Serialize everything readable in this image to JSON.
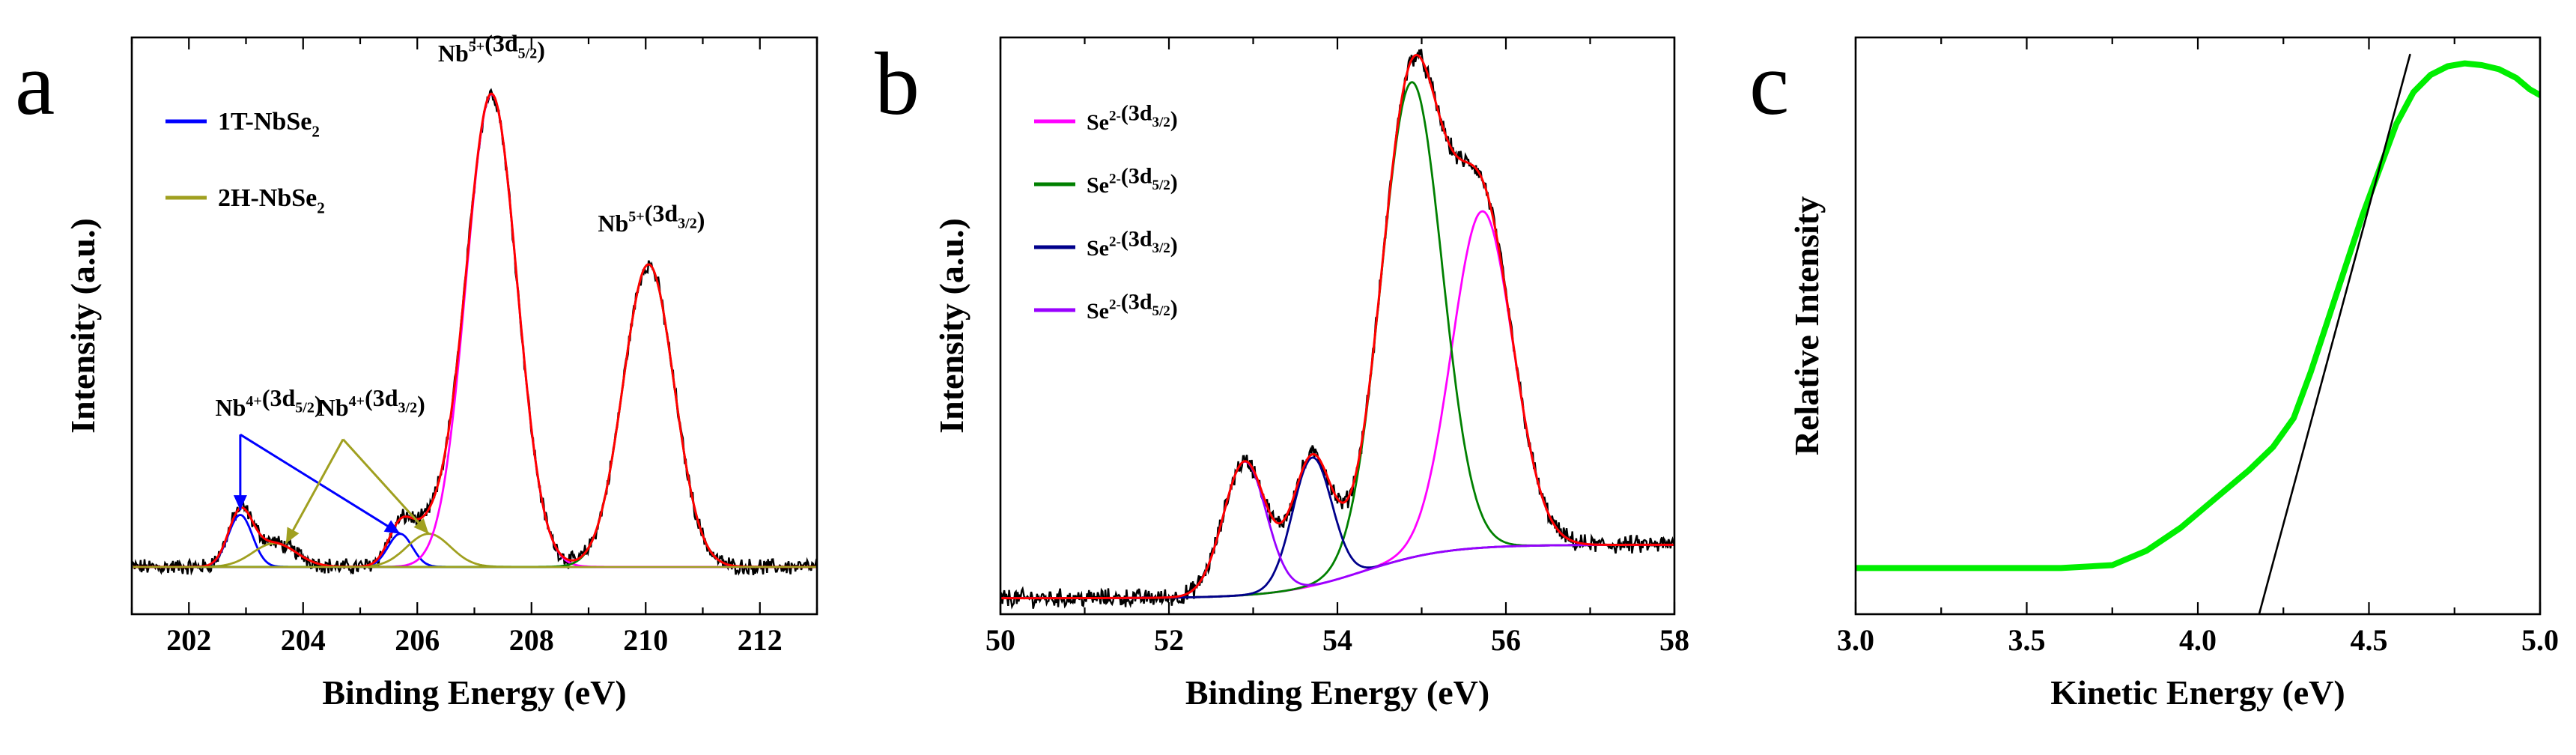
{
  "colors": {
    "black": "#000000",
    "red": "#ff0000",
    "blue": "#0000ff",
    "olive": "#a0a020",
    "magenta": "#ff00ff",
    "green": "#008000",
    "bright_green": "#00ee00",
    "navy": "#00008b",
    "violet": "#9900ff"
  },
  "chart_data": [
    {
      "id": "a",
      "panel_letter": "a",
      "type": "line",
      "title": "",
      "xlabel": "Binding Energy (eV)",
      "ylabel": "Intensity (a.u.)",
      "xlim": [
        201,
        213
      ],
      "ylim": [
        -0.1,
        1.12
      ],
      "xticks": [
        202,
        204,
        206,
        208,
        210,
        212
      ],
      "xtick_labels": [
        "202",
        "204",
        "206",
        "208",
        "210",
        "212"
      ],
      "baseline": 0.0,
      "legend": [
        {
          "label": "1T-NbSe",
          "sub": "2",
          "color": "#0000ff"
        },
        {
          "label": "2H-NbSe",
          "sub": "2",
          "color": "#a0a020"
        }
      ],
      "peaks": [
        {
          "name": "1T-NbSe2 Nb4+ 3d5/2",
          "center": 202.9,
          "amplitude": 0.11,
          "fwhm": 0.5,
          "color": "#0000ff"
        },
        {
          "name": "1T-NbSe2 Nb4+ 3d3/2",
          "center": 205.7,
          "amplitude": 0.07,
          "fwhm": 0.5,
          "color": "#0000ff"
        },
        {
          "name": "2H-NbSe2 Nb4+ 3d5/2",
          "center": 203.5,
          "amplitude": 0.05,
          "fwhm": 0.9,
          "color": "#a0a020"
        },
        {
          "name": "2H-NbSe2 Nb4+ 3d3/2",
          "center": 206.2,
          "amplitude": 0.07,
          "fwhm": 0.9,
          "color": "#a0a020"
        },
        {
          "name": "Nb5+ 3d5/2",
          "center": 207.3,
          "amplitude": 1.0,
          "fwhm": 1.05,
          "color": "#ff00ff"
        },
        {
          "name": "Nb5+ 3d3/2",
          "center": 210.05,
          "amplitude": 0.64,
          "fwhm": 1.05,
          "color": "#008000"
        }
      ],
      "annotations": [
        {
          "base": "Nb",
          "sup": "5+",
          "orb": "(3d",
          "orbsub": "5/2",
          "close": ")",
          "x": 207.3,
          "y": 1.06
        },
        {
          "base": "Nb",
          "sup": "5+",
          "orb": "(3d",
          "orbsub": "3/2",
          "close": ")",
          "x": 210.1,
          "y": 0.7
        },
        {
          "base": "Nb",
          "sup": "4+",
          "orb": "(3d",
          "orbsub": "5/2",
          "close": ")",
          "x": 203.4,
          "y": 0.31
        },
        {
          "base": "Nb",
          "sup": "4+",
          "orb": "(3d",
          "orbsub": "3/2",
          "close": ")",
          "x": 205.2,
          "y": 0.31
        }
      ],
      "arrows": [
        {
          "color": "#0000ff",
          "from": [
            202.9,
            0.28
          ],
          "to": [
            202.9,
            0.12
          ]
        },
        {
          "color": "#0000ff",
          "from": [
            202.9,
            0.28
          ],
          "to": [
            205.7,
            0.07
          ]
        },
        {
          "color": "#a0a020",
          "from": [
            204.7,
            0.27
          ],
          "to": [
            203.7,
            0.05
          ]
        },
        {
          "color": "#a0a020",
          "from": [
            204.7,
            0.27
          ],
          "to": [
            206.2,
            0.07
          ]
        }
      ],
      "series": [
        {
          "name": "raw",
          "color": "#000000",
          "kind": "raw"
        },
        {
          "name": "fit",
          "color": "#ff0000",
          "kind": "envelope"
        }
      ]
    },
    {
      "id": "b",
      "panel_letter": "b",
      "type": "line",
      "title": "",
      "xlabel": "Binding Energy (eV)",
      "ylabel": "Intensity (a.u.)",
      "xlim": [
        50,
        58
      ],
      "ylim": [
        -0.03,
        1.05
      ],
      "xticks": [
        50,
        52,
        54,
        56,
        58
      ],
      "xtick_labels": [
        "50",
        "52",
        "54",
        "56",
        "58"
      ],
      "baseline": {
        "type": "sigmoid",
        "low": 0.0,
        "high": 0.1,
        "center": 54.3,
        "width": 0.5
      },
      "legend": [
        {
          "base": "Se",
          "sup": "2-",
          "orb": "(3d",
          "orbsub": "3/2",
          "close": ")",
          "color": "#ff00ff"
        },
        {
          "base": "Se",
          "sup": "2-",
          "orb": "(3d",
          "orbsub": "5/2",
          "close": ")",
          "color": "#008000"
        },
        {
          "base": "Se",
          "sup": "2-",
          "orb": "(3d",
          "orbsub": "3/2",
          "close": ")",
          "color": "#00008b"
        },
        {
          "base": "Se",
          "sup": "2-",
          "orb": "(3d",
          "orbsub": "5/2",
          "close": ")",
          "color": "#9900ff"
        }
      ],
      "peaks": [
        {
          "name": "Se2- 3d3/2 (main)",
          "center": 55.72,
          "amplitude": 0.63,
          "fwhm": 0.85,
          "color": "#ff00ff"
        },
        {
          "name": "Se2- 3d5/2 (main)",
          "center": 54.88,
          "amplitude": 0.89,
          "fwhm": 0.85,
          "color": "#008000"
        },
        {
          "name": "Se2- 3d3/2 (minor)",
          "center": 53.7,
          "amplitude": 0.24,
          "fwhm": 0.55,
          "color": "#00008b"
        },
        {
          "name": "Se2- 3d5/2 (minor)",
          "center": 52.9,
          "amplitude": 0.25,
          "fwhm": 0.6,
          "color": "#9900ff"
        }
      ],
      "series": [
        {
          "name": "raw",
          "color": "#000000",
          "kind": "raw"
        },
        {
          "name": "fit",
          "color": "#ff0000",
          "kind": "envelope"
        }
      ]
    },
    {
      "id": "c",
      "panel_letter": "c",
      "type": "line",
      "title": "",
      "xlabel": "Kinetic Energy (eV)",
      "ylabel": "Relative Intensity",
      "xlim": [
        3.0,
        5.0
      ],
      "ylim": [
        0.0,
        1.0
      ],
      "xticks": [
        3.0,
        3.5,
        4.0,
        4.5,
        5.0
      ],
      "xtick_labels": [
        "3.0",
        "3.5",
        "4.0",
        "4.5",
        "5.0"
      ],
      "series": [
        {
          "name": "spectrum",
          "color": "#00ee00",
          "x": [
            3.0,
            3.3,
            3.6,
            3.75,
            3.85,
            3.95,
            4.05,
            4.15,
            4.22,
            4.28,
            4.33,
            4.38,
            4.43,
            4.48,
            4.53,
            4.58,
            4.63,
            4.68,
            4.73,
            4.78,
            4.83,
            4.88,
            4.93,
            4.97,
            5.0
          ],
          "y": [
            0.08,
            0.08,
            0.08,
            0.085,
            0.11,
            0.15,
            0.2,
            0.25,
            0.29,
            0.34,
            0.42,
            0.51,
            0.6,
            0.69,
            0.77,
            0.85,
            0.905,
            0.935,
            0.95,
            0.955,
            0.952,
            0.945,
            0.93,
            0.91,
            0.9
          ]
        },
        {
          "name": "tangent",
          "color": "#000000",
          "x": [
            4.17,
            4.62
          ],
          "y": [
            -0.02,
            0.97
          ]
        }
      ]
    }
  ]
}
